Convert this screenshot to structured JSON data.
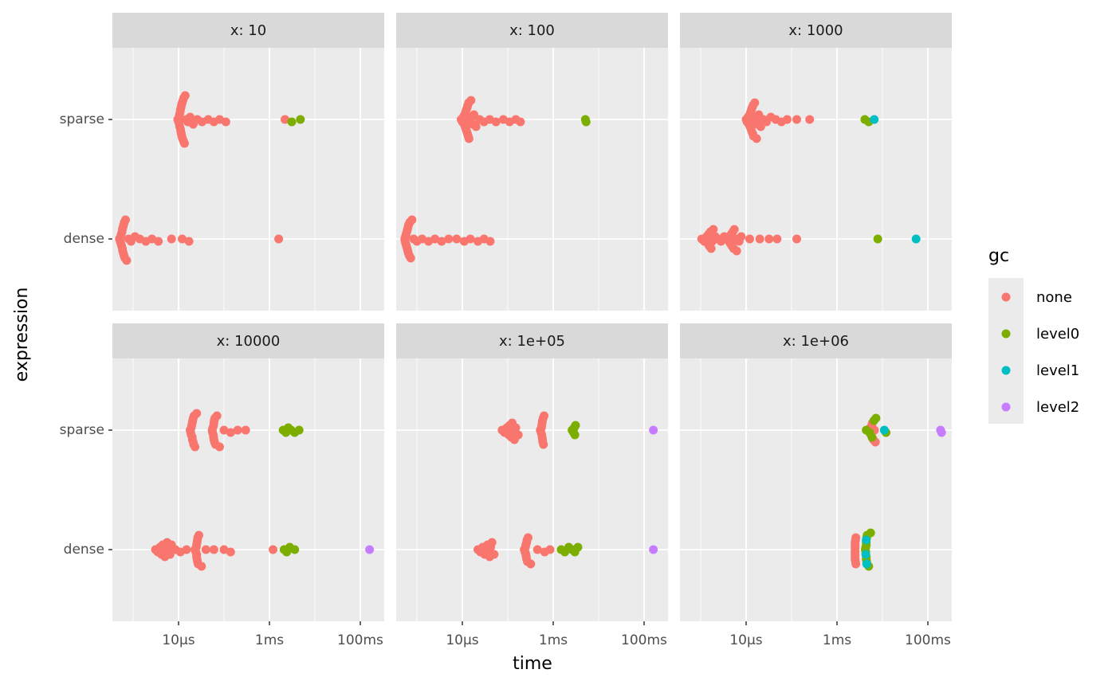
{
  "chart_data": {
    "type": "beeswarm",
    "x_label": "time",
    "y_label": "expression",
    "categories": [
      "sparse",
      "dense"
    ],
    "xlog": true,
    "xlim": [
      3.5e-07,
      0.336
    ],
    "xticks": [
      {
        "value": 1e-05,
        "label": "10µs"
      },
      {
        "value": 0.001,
        "label": "1ms"
      },
      {
        "value": 0.1,
        "label": "100ms"
      }
    ],
    "xminor": [
      1e-06,
      0.0001,
      0.01
    ],
    "grid": true,
    "legend": {
      "title": "gc",
      "position": "right",
      "items": [
        {
          "name": "none",
          "color": "#f8766d"
        },
        {
          "name": "level0",
          "color": "#7cae00"
        },
        {
          "name": "level1",
          "color": "#00bfc4"
        },
        {
          "name": "level2",
          "color": "#c77cff"
        }
      ]
    },
    "facets": [
      {
        "title": "x: 10",
        "series": [
          {
            "sparse": [
              9.6e-06,
              1e-05,
              1.02e-05,
              1.04e-05,
              1.05e-05,
              1.06e-05,
              1.08e-05,
              1.1e-05,
              1.1e-05,
              1.12e-05,
              1.13e-05,
              1.15e-05,
              1.16e-05,
              1.18e-05,
              1.2e-05,
              1.22e-05,
              1.25e-05,
              1.28e-05,
              1.3e-05,
              1.35e-05,
              1.4e-05,
              1.5e-05,
              1.6e-05,
              1.8e-05,
              2.1e-05,
              2.6e-05,
              3.3e-05,
              4.5e-05,
              6e-05,
              8e-05,
              0.00011,
              0.0022
            ],
            "dense": [
              5e-07,
              5.2e-07,
              5.3e-07,
              5.4e-07,
              5.5e-07,
              5.6e-07,
              5.7e-07,
              5.8e-07,
              5.8e-07,
              5.9e-07,
              6e-07,
              6.1e-07,
              6.2e-07,
              6.3e-07,
              6.4e-07,
              6.6e-07,
              6.8e-07,
              7.2e-07,
              8e-07,
              9e-07,
              1.1e-06,
              1.4e-06,
              1.9e-06,
              2.6e-06,
              3.6e-06,
              7e-06,
              1.2e-05,
              1.7e-05,
              0.0016
            ]
          },
          {
            "sparse": [
              0.0031,
              0.0048
            ],
            "dense": []
          },
          {
            "sparse": [],
            "dense": []
          },
          {
            "sparse": [],
            "dense": []
          }
        ]
      },
      {
        "title": "x: 100",
        "series": [
          {
            "sparse": [
              9.4e-06,
              1e-05,
              1.05e-05,
              1.1e-05,
              1.12e-05,
              1.15e-05,
              1.18e-05,
              1.2e-05,
              1.22e-05,
              1.25e-05,
              1.28e-05,
              1.3e-05,
              1.32e-05,
              1.35e-05,
              1.38e-05,
              1.4e-05,
              1.45e-05,
              1.5e-05,
              1.55e-05,
              1.6e-05,
              1.7e-05,
              1.8e-05,
              2e-05,
              2.4e-05,
              3e-05,
              4e-05,
              5.5e-05,
              8e-05,
              0.00011,
              0.00015,
              0.00019
            ],
            "dense": [
              5.4e-07,
              5.5e-07,
              5.6e-07,
              5.7e-07,
              5.8e-07,
              5.9e-07,
              6e-07,
              6.1e-07,
              6.2e-07,
              6.3e-07,
              6.4e-07,
              6.5e-07,
              6.6e-07,
              6.8e-07,
              7e-07,
              7.3e-07,
              7.8e-07,
              8.5e-07,
              1e-06,
              1.3e-06,
              1.8e-06,
              2.5e-06,
              3.5e-06,
              5e-06,
              7.5e-06,
              1.1e-05,
              1.5e-05,
              2.2e-05,
              3e-05,
              4.1e-05
            ]
          },
          {
            "sparse": [
              0.0051,
              0.0053
            ],
            "dense": []
          },
          {
            "sparse": [],
            "dense": []
          },
          {
            "sparse": [],
            "dense": []
          }
        ]
      },
      {
        "title": "x: 1000",
        "series": [
          {
            "sparse": [
              1e-05,
              1.05e-05,
              1.1e-05,
              1.15e-05,
              1.2e-05,
              1.22e-05,
              1.25e-05,
              1.28e-05,
              1.3e-05,
              1.33e-05,
              1.36e-05,
              1.4e-05,
              1.43e-05,
              1.46e-05,
              1.5e-05,
              1.55e-05,
              1.6e-05,
              1.65e-05,
              1.7e-05,
              1.8e-05,
              1.9e-05,
              2.1e-05,
              2.4e-05,
              2.8e-05,
              3.5e-05,
              4.5e-05,
              6e-05,
              8e-05,
              0.00013,
              0.00025
            ],
            "dense": [
              1.05e-06,
              1.2e-06,
              1.35e-06,
              1.45e-06,
              1.5e-06,
              1.55e-06,
              1.6e-06,
              1.65e-06,
              1.7e-06,
              1.8e-06,
              1.9e-06,
              2.1e-06,
              2.4e-06,
              2.8e-06,
              3.3e-06,
              3.8e-06,
              4.2e-06,
              4.5e-06,
              4.7e-06,
              4.9e-06,
              5e-06,
              5.1e-06,
              5.3e-06,
              5.5e-06,
              5.8e-06,
              6.2e-06,
              7e-06,
              7.8e-06,
              1.2e-05,
              2e-05,
              3.2e-05,
              4.8e-05,
              0.00013
            ]
          },
          {
            "sparse": [
              0.0041,
              0.005
            ],
            "dense": [
              0.0079
            ]
          },
          {
            "sparse": [
              0.0066
            ],
            "dense": [
              0.055
            ]
          },
          {
            "sparse": [],
            "dense": []
          }
        ]
      },
      {
        "title": "x: 10000",
        "series": [
          {
            "sparse": [
              1.8e-05,
              1.85e-05,
              1.9e-05,
              1.9e-05,
              1.95e-05,
              2e-05,
              2e-05,
              2.02e-05,
              2.05e-05,
              2.1e-05,
              2.1e-05,
              2.15e-05,
              2.2e-05,
              2.3e-05,
              2.5e-05,
              5.5e-05,
              5.6e-05,
              5.7e-05,
              5.8e-05,
              5.9e-05,
              5.9e-05,
              6e-05,
              6e-05,
              6.1e-05,
              6.2e-05,
              6.3e-05,
              6.5e-05,
              7e-05,
              8e-05,
              0.0001,
              0.00014,
              0.0002,
              0.0003
            ],
            "dense": [
              3.1e-06,
              3.5e-06,
              3.9e-06,
              4.2e-06,
              4.5e-06,
              4.8e-06,
              5e-06,
              5.3e-06,
              5.6e-06,
              6e-06,
              6.5e-06,
              7e-06,
              8.5e-06,
              1.1e-05,
              1.5e-05,
              2.3e-05,
              2.4e-05,
              2.45e-05,
              2.5e-05,
              2.5e-05,
              2.5e-05,
              2.55e-05,
              2.55e-05,
              2.6e-05,
              2.6e-05,
              2.65e-05,
              2.7e-05,
              2.8e-05,
              3.2e-05,
              4e-05,
              6e-05,
              0.0001,
              0.00014,
              0.0012
            ]
          },
          {
            "sparse": [
              0.002,
              0.0023,
              0.0026,
              0.003,
              0.0036,
              0.0045
            ],
            "dense": [
              0.0021,
              0.0024,
              0.0028,
              0.0036
            ]
          },
          {
            "sparse": [],
            "dense": []
          },
          {
            "sparse": [],
            "dense": [
              0.16
            ]
          }
        ]
      },
      {
        "title": "x: 1e+05",
        "series": [
          {
            "sparse": [
              7.5e-05,
              8.5e-05,
              9.5e-05,
              0.000105,
              0.00011,
              0.000115,
              0.00012,
              0.000125,
              0.00013,
              0.00014,
              0.00015,
              0.00017,
              0.00052,
              0.00054,
              0.00055,
              0.00056,
              0.00056,
              0.00057,
              0.00057,
              0.00058,
              0.00058,
              0.00059,
              0.0006,
              0.00061,
              0.00063
            ],
            "dense": [
              2.2e-05,
              2.5e-05,
              2.8e-05,
              3.1e-05,
              3.4e-05,
              3.6e-05,
              3.8e-05,
              4e-05,
              4.2e-05,
              4.5e-05,
              5e-05,
              0.00023,
              0.00024,
              0.000245,
              0.00025,
              0.00025,
              0.000255,
              0.00026,
              0.00026,
              0.000265,
              0.00027,
              0.00028,
              0.00032,
              0.00045,
              0.00065,
              0.00085
            ]
          },
          {
            "sparse": [
              0.0026,
              0.0028,
              0.0029,
              0.003,
              0.0031
            ],
            "dense": [
              0.0015,
              0.0018,
              0.0022,
              0.0026,
              0.003,
              0.0035
            ]
          },
          {
            "sparse": [],
            "dense": []
          },
          {
            "sparse": [
              0.16
            ],
            "dense": [
              0.16
            ]
          }
        ]
      },
      {
        "title": "x: 1e+06",
        "series": [
          {
            "sparse": [
              0.0054,
              0.0056,
              0.0058,
              0.006,
              0.0063,
              0.0067,
              0.007
            ],
            "dense": [
              0.0025,
              0.0025,
              0.0025,
              0.00255,
              0.0025,
              0.0026,
              0.0025,
              0.0025,
              0.00255,
              0.0026,
              0.0025,
              0.0025
            ]
          },
          {
            "sparse": [
              0.0044,
              0.0052,
              0.0059,
              0.0065,
              0.0072,
              0.012
            ],
            "dense": [
              0.0042,
              0.0044,
              0.0044,
              0.0045,
              0.0043,
              0.0046,
              0.0044,
              0.0045,
              0.005,
              0.0055,
              0.0044,
              0.0043
            ]
          },
          {
            "sparse": [
              0.011
            ],
            "dense": [
              0.0043,
              0.0044,
              0.0045
            ]
          },
          {
            "sparse": [
              0.19,
              0.2
            ],
            "dense": []
          }
        ]
      }
    ]
  }
}
